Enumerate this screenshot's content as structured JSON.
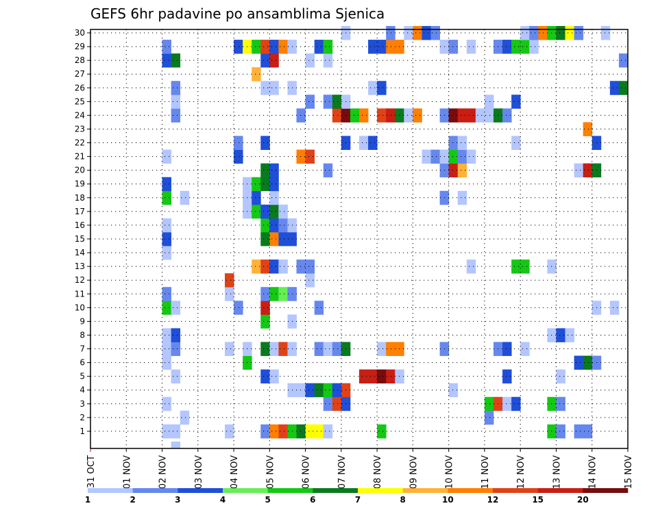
{
  "chart_data": {
    "type": "heatmap",
    "title": "GEFS 6hr padavine po ansamblima Sjenica",
    "xlabel": "",
    "ylabel": "",
    "x_ticks": [
      "31 OCT",
      "01 NOV",
      "02 NOV",
      "03 NOV",
      "04 NOV",
      "05 NOV",
      "06 NOV",
      "07 NOV",
      "08 NOV",
      "09 NOV",
      "10 NOV",
      "11 NOV",
      "12 NOV",
      "13 NOV",
      "14 NOV",
      "15 NOV"
    ],
    "y_ticks": [
      "1",
      "2",
      "3",
      "4",
      "5",
      "6",
      "7",
      "8",
      "9",
      "10",
      "11",
      "12",
      "13",
      "14",
      "15",
      "16",
      "17",
      "18",
      "19",
      "20",
      "21",
      "22",
      "23",
      "24",
      "25",
      "26",
      "27",
      "28",
      "29",
      "30"
    ],
    "xlim_steps": [
      0,
      60
    ],
    "ylim_members": [
      0,
      30
    ],
    "grid": true,
    "colorbar": {
      "levels": [
        "1",
        "2",
        "3",
        "4",
        "5",
        "6",
        "7",
        "8",
        "10",
        "12",
        "15",
        "20"
      ],
      "colors": [
        "#b3c6ff",
        "#6688ee",
        "#1f4fd9",
        "#66ee55",
        "#14c814",
        "#0a7a1e",
        "#ffff00",
        "#ffb238",
        "#ff7f00",
        "#e04218",
        "#c81e14",
        "#780c0c"
      ]
    },
    "cells": [
      [
        0,
        9,
        1
      ],
      [
        1,
        8,
        1
      ],
      [
        1,
        9,
        1
      ],
      [
        1,
        15,
        1
      ],
      [
        1,
        19,
        2
      ],
      [
        1,
        20,
        9
      ],
      [
        1,
        21,
        10
      ],
      [
        1,
        22,
        5
      ],
      [
        1,
        23,
        6
      ],
      [
        1,
        24,
        7
      ],
      [
        1,
        25,
        7
      ],
      [
        1,
        26,
        1
      ],
      [
        1,
        32,
        5
      ],
      [
        1,
        51,
        5
      ],
      [
        1,
        52,
        2
      ],
      [
        1,
        54,
        2
      ],
      [
        1,
        55,
        2
      ],
      [
        2,
        10,
        1
      ],
      [
        2,
        44,
        2
      ],
      [
        3,
        8,
        1
      ],
      [
        3,
        26,
        2
      ],
      [
        3,
        27,
        10
      ],
      [
        3,
        28,
        3
      ],
      [
        3,
        44,
        5
      ],
      [
        3,
        45,
        10
      ],
      [
        3,
        46,
        1
      ],
      [
        3,
        47,
        3
      ],
      [
        3,
        51,
        5
      ],
      [
        3,
        52,
        2
      ],
      [
        4,
        22,
        1
      ],
      [
        4,
        23,
        1
      ],
      [
        4,
        24,
        3
      ],
      [
        4,
        25,
        6
      ],
      [
        4,
        26,
        5
      ],
      [
        4,
        27,
        3
      ],
      [
        4,
        28,
        10
      ],
      [
        4,
        40,
        1
      ],
      [
        5,
        9,
        1
      ],
      [
        5,
        19,
        3
      ],
      [
        5,
        20,
        1
      ],
      [
        5,
        30,
        11
      ],
      [
        5,
        31,
        11
      ],
      [
        5,
        32,
        12
      ],
      [
        5,
        33,
        11
      ],
      [
        5,
        34,
        1
      ],
      [
        5,
        46,
        3
      ],
      [
        5,
        52,
        1
      ],
      [
        6,
        8,
        1
      ],
      [
        6,
        17,
        5
      ],
      [
        6,
        54,
        3
      ],
      [
        6,
        55,
        6
      ],
      [
        6,
        56,
        2
      ],
      [
        7,
        8,
        1
      ],
      [
        7,
        9,
        2
      ],
      [
        7,
        15,
        1
      ],
      [
        7,
        17,
        1
      ],
      [
        7,
        19,
        6
      ],
      [
        7,
        20,
        1
      ],
      [
        7,
        21,
        10
      ],
      [
        7,
        22,
        1
      ],
      [
        7,
        25,
        2
      ],
      [
        7,
        26,
        1
      ],
      [
        7,
        27,
        2
      ],
      [
        7,
        28,
        6
      ],
      [
        7,
        32,
        1
      ],
      [
        7,
        33,
        9
      ],
      [
        7,
        34,
        9
      ],
      [
        7,
        39,
        2
      ],
      [
        7,
        45,
        2
      ],
      [
        7,
        46,
        3
      ],
      [
        7,
        48,
        1
      ],
      [
        8,
        8,
        1
      ],
      [
        8,
        9,
        3
      ],
      [
        8,
        51,
        1
      ],
      [
        8,
        52,
        3
      ],
      [
        8,
        53,
        1
      ],
      [
        9,
        19,
        5
      ],
      [
        9,
        22,
        1
      ],
      [
        10,
        8,
        5
      ],
      [
        10,
        9,
        1
      ],
      [
        10,
        16,
        2
      ],
      [
        10,
        19,
        11
      ],
      [
        10,
        25,
        2
      ],
      [
        10,
        56,
        1
      ],
      [
        10,
        58,
        1
      ],
      [
        11,
        8,
        2
      ],
      [
        11,
        15,
        1
      ],
      [
        11,
        19,
        2
      ],
      [
        11,
        20,
        5
      ],
      [
        11,
        21,
        4
      ],
      [
        11,
        22,
        2
      ],
      [
        12,
        15,
        10
      ],
      [
        12,
        24,
        1
      ],
      [
        13,
        18,
        8
      ],
      [
        13,
        19,
        10
      ],
      [
        13,
        20,
        3
      ],
      [
        13,
        21,
        1
      ],
      [
        13,
        23,
        2
      ],
      [
        13,
        24,
        2
      ],
      [
        13,
        42,
        1
      ],
      [
        13,
        47,
        5
      ],
      [
        13,
        48,
        5
      ],
      [
        13,
        51,
        1
      ],
      [
        14,
        8,
        1
      ],
      [
        15,
        8,
        3
      ],
      [
        15,
        19,
        6
      ],
      [
        15,
        20,
        9
      ],
      [
        15,
        21,
        3
      ],
      [
        15,
        22,
        3
      ],
      [
        16,
        8,
        1
      ],
      [
        16,
        19,
        5
      ],
      [
        16,
        20,
        3
      ],
      [
        16,
        21,
        2
      ],
      [
        16,
        22,
        1
      ],
      [
        17,
        17,
        1
      ],
      [
        17,
        18,
        5
      ],
      [
        17,
        19,
        3
      ],
      [
        17,
        20,
        6
      ],
      [
        17,
        21,
        1
      ],
      [
        18,
        8,
        5
      ],
      [
        18,
        10,
        1
      ],
      [
        18,
        17,
        1
      ],
      [
        18,
        18,
        3
      ],
      [
        18,
        20,
        1
      ],
      [
        18,
        39,
        2
      ],
      [
        18,
        41,
        1
      ],
      [
        19,
        8,
        3
      ],
      [
        19,
        17,
        1
      ],
      [
        19,
        18,
        5
      ],
      [
        19,
        19,
        6
      ],
      [
        19,
        20,
        3
      ],
      [
        20,
        19,
        6
      ],
      [
        20,
        20,
        3
      ],
      [
        20,
        26,
        2
      ],
      [
        20,
        39,
        2
      ],
      [
        20,
        40,
        11
      ],
      [
        20,
        41,
        8
      ],
      [
        20,
        54,
        1
      ],
      [
        20,
        55,
        11
      ],
      [
        20,
        56,
        6
      ],
      [
        21,
        8,
        1
      ],
      [
        21,
        16,
        3
      ],
      [
        21,
        23,
        9
      ],
      [
        21,
        24,
        10
      ],
      [
        21,
        37,
        1
      ],
      [
        21,
        38,
        2
      ],
      [
        21,
        39,
        1
      ],
      [
        21,
        40,
        5
      ],
      [
        21,
        41,
        2
      ],
      [
        21,
        42,
        1
      ],
      [
        22,
        16,
        2
      ],
      [
        22,
        19,
        3
      ],
      [
        22,
        28,
        3
      ],
      [
        22,
        30,
        1
      ],
      [
        22,
        31,
        3
      ],
      [
        22,
        40,
        2
      ],
      [
        22,
        41,
        1
      ],
      [
        22,
        47,
        1
      ],
      [
        22,
        56,
        3
      ],
      [
        23,
        55,
        9
      ],
      [
        24,
        9,
        2
      ],
      [
        24,
        23,
        2
      ],
      [
        24,
        27,
        10
      ],
      [
        24,
        28,
        12
      ],
      [
        24,
        29,
        5
      ],
      [
        24,
        30,
        9
      ],
      [
        24,
        32,
        10
      ],
      [
        24,
        33,
        11
      ],
      [
        24,
        34,
        6
      ],
      [
        24,
        35,
        1
      ],
      [
        24,
        36,
        9
      ],
      [
        24,
        39,
        2
      ],
      [
        24,
        40,
        12
      ],
      [
        24,
        41,
        11
      ],
      [
        24,
        42,
        11
      ],
      [
        24,
        43,
        1
      ],
      [
        24,
        44,
        1
      ],
      [
        24,
        45,
        6
      ],
      [
        24,
        46,
        2
      ],
      [
        25,
        9,
        1
      ],
      [
        25,
        24,
        2
      ],
      [
        25,
        26,
        2
      ],
      [
        25,
        27,
        6
      ],
      [
        25,
        28,
        1
      ],
      [
        25,
        44,
        1
      ],
      [
        25,
        47,
        3
      ],
      [
        26,
        9,
        2
      ],
      [
        26,
        19,
        1
      ],
      [
        26,
        20,
        1
      ],
      [
        26,
        22,
        1
      ],
      [
        26,
        31,
        1
      ],
      [
        26,
        32,
        3
      ],
      [
        26,
        58,
        3
      ],
      [
        26,
        59,
        6
      ],
      [
        27,
        18,
        8
      ],
      [
        28,
        8,
        3
      ],
      [
        28,
        9,
        6
      ],
      [
        28,
        24,
        1
      ],
      [
        28,
        26,
        1
      ],
      [
        28,
        19,
        3
      ],
      [
        28,
        20,
        11
      ],
      [
        28,
        59,
        2
      ],
      [
        29,
        8,
        2
      ],
      [
        29,
        16,
        3
      ],
      [
        29,
        17,
        7
      ],
      [
        29,
        18,
        5
      ],
      [
        29,
        19,
        10
      ],
      [
        29,
        20,
        3
      ],
      [
        29,
        21,
        9
      ],
      [
        29,
        22,
        1
      ],
      [
        29,
        25,
        3
      ],
      [
        29,
        26,
        5
      ],
      [
        29,
        31,
        3
      ],
      [
        29,
        32,
        3
      ],
      [
        29,
        33,
        9
      ],
      [
        29,
        34,
        9
      ],
      [
        29,
        39,
        1
      ],
      [
        29,
        40,
        2
      ],
      [
        29,
        42,
        1
      ],
      [
        29,
        45,
        2
      ],
      [
        29,
        46,
        3
      ],
      [
        29,
        47,
        5
      ],
      [
        29,
        48,
        5
      ],
      [
        29,
        49,
        1
      ],
      [
        30,
        28,
        1
      ],
      [
        30,
        33,
        2
      ],
      [
        30,
        35,
        1
      ],
      [
        30,
        36,
        9
      ],
      [
        30,
        37,
        3
      ],
      [
        30,
        38,
        2
      ],
      [
        30,
        48,
        1
      ],
      [
        30,
        49,
        2
      ],
      [
        30,
        50,
        9
      ],
      [
        30,
        51,
        5
      ],
      [
        30,
        52,
        6
      ],
      [
        30,
        53,
        7
      ],
      [
        30,
        54,
        2
      ],
      [
        30,
        57,
        1
      ]
    ]
  }
}
